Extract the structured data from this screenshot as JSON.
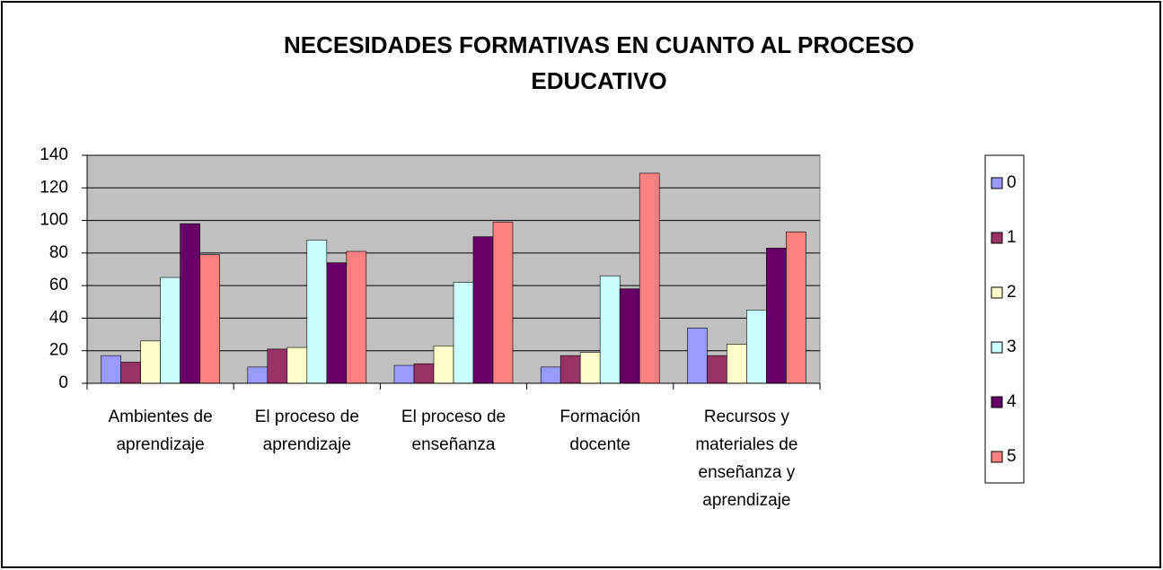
{
  "chart_data": {
    "type": "bar",
    "title": [
      "NECESIDADES FORMATIVAS   EN CUANTO AL PROCESO",
      "EDUCATIVO"
    ],
    "categories": [
      "Ambientes de aprendizaje",
      "El proceso de aprendizaje",
      "El proceso de enseñanza",
      "Formación docente",
      "Recursos y materiales de enseñanza y aprendizaje"
    ],
    "series": [
      {
        "name": "0",
        "color": "#9999ff",
        "values": [
          17,
          10,
          11,
          10,
          34
        ]
      },
      {
        "name": "1",
        "color": "#993366",
        "values": [
          13,
          21,
          12,
          17,
          17
        ]
      },
      {
        "name": "2",
        "color": "#ffffcc",
        "values": [
          26,
          22,
          23,
          19,
          24
        ]
      },
      {
        "name": "3",
        "color": "#ccffff",
        "values": [
          65,
          88,
          62,
          66,
          45
        ]
      },
      {
        "name": "4",
        "color": "#660066",
        "values": [
          98,
          74,
          90,
          58,
          83
        ]
      },
      {
        "name": "5",
        "color": "#ff8080",
        "values": [
          79,
          81,
          99,
          129,
          93
        ]
      }
    ],
    "ylim": [
      0,
      140
    ],
    "yticks": [
      0,
      20,
      40,
      60,
      80,
      100,
      120,
      140
    ],
    "grid": true,
    "legend": "right"
  }
}
